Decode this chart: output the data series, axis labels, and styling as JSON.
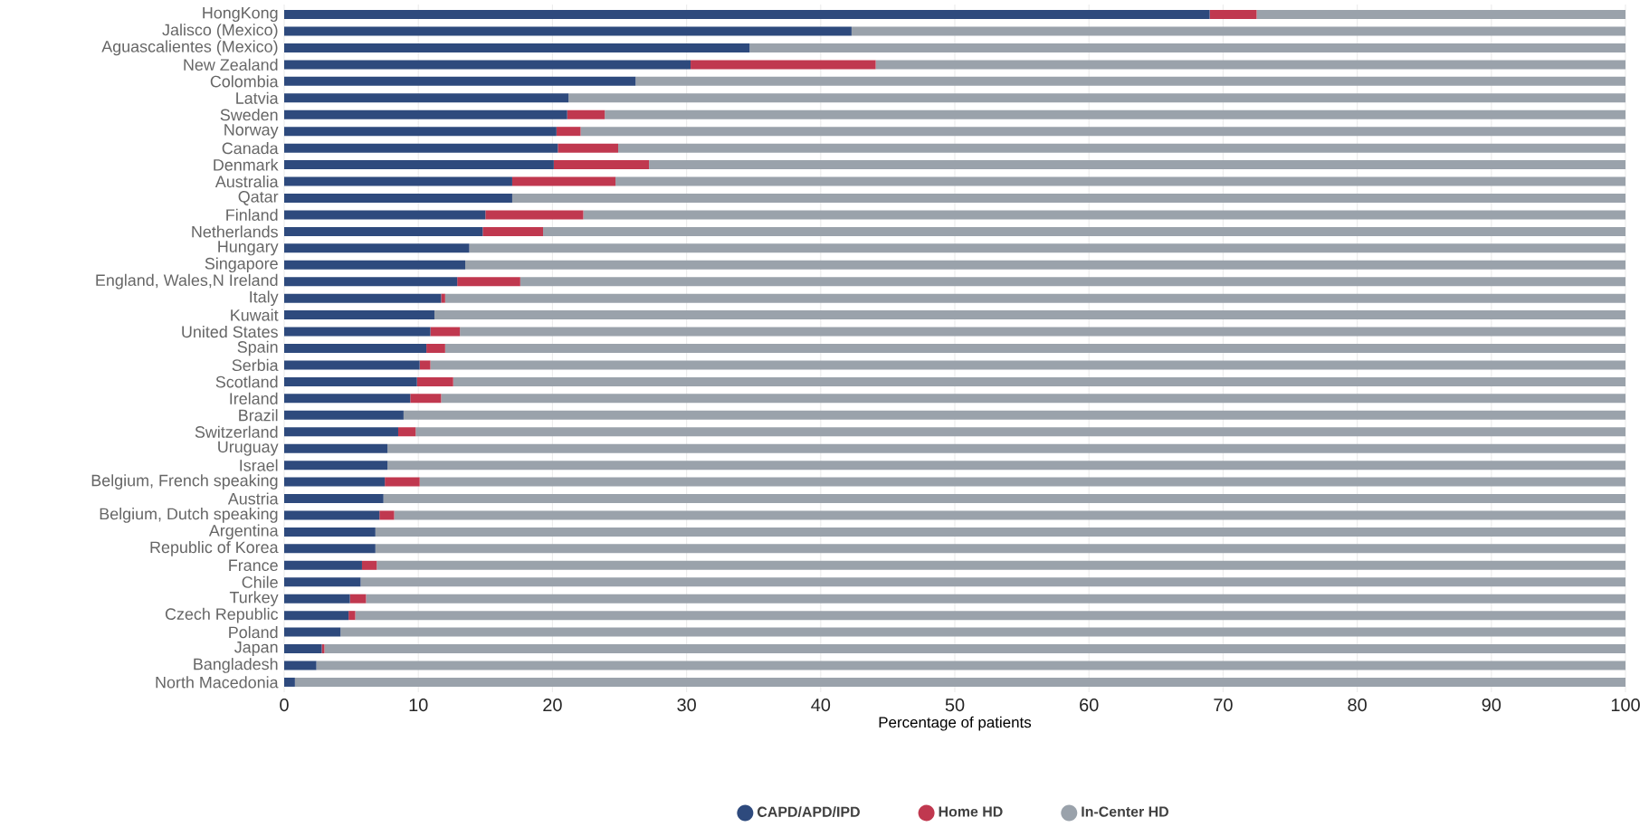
{
  "chart_data": {
    "type": "bar",
    "orientation": "horizontal",
    "stacked": true,
    "xlabel": "Percentage of patients",
    "categories": [
      "HongKong",
      "Jalisco (Mexico)",
      "Aguascalientes (Mexico)",
      "New Zealand",
      "Colombia",
      "Latvia",
      "Sweden",
      "Norway",
      "Canada",
      "Denmark",
      "Australia",
      "Qatar",
      "Finland",
      "Netherlands",
      "Hungary",
      "Singapore",
      "England, Wales,N Ireland",
      "Italy",
      "Kuwait",
      "United States",
      "Spain",
      "Serbia",
      "Scotland",
      "Ireland",
      "Brazil",
      "Switzerland",
      "Uruguay",
      "Israel",
      "Belgium, French speaking",
      "Austria",
      "Belgium, Dutch speaking",
      "Argentina",
      "Republic of Korea",
      "France",
      "Chile",
      "Turkey",
      "Czech Republic",
      "Poland",
      "Japan",
      "Bangladesh",
      "North Macedonia"
    ],
    "series": [
      {
        "name": "CAPD/APD/IPD",
        "color": "#2e4a7d",
        "values": [
          69,
          42.3,
          34.7,
          30.3,
          26.2,
          21.2,
          21.1,
          20.3,
          20.4,
          20.1,
          17.0,
          17.0,
          15.0,
          14.8,
          13.8,
          13.5,
          12.9,
          11.7,
          11.2,
          10.9,
          10.6,
          10.1,
          9.9,
          9.4,
          8.9,
          8.5,
          7.7,
          7.7,
          7.5,
          7.4,
          7.1,
          6.8,
          6.8,
          5.8,
          5.7,
          4.9,
          4.8,
          4.2,
          2.8,
          2.4,
          0.8
        ]
      },
      {
        "name": "Home HD",
        "color": "#c0384f",
        "values": [
          3.5,
          0,
          0,
          13.8,
          0,
          0,
          2.8,
          1.8,
          4.5,
          7.1,
          7.7,
          0,
          7.3,
          4.5,
          0,
          0,
          4.7,
          0.3,
          0,
          2.2,
          1.4,
          0.8,
          2.7,
          2.3,
          0,
          1.3,
          0,
          0,
          2.6,
          0,
          1.1,
          0,
          0,
          1.1,
          0,
          1.2,
          0.5,
          0,
          0.2,
          0,
          0
        ]
      },
      {
        "name": "In-Center HD",
        "color": "#9aa2ab",
        "values": [
          27.5,
          57.7,
          65.3,
          55.9,
          73.8,
          78.8,
          76.1,
          77.9,
          75.1,
          72.8,
          75.3,
          83.0,
          77.7,
          80.7,
          86.2,
          86.5,
          82.4,
          88.0,
          88.8,
          86.9,
          88.0,
          89.1,
          87.4,
          88.3,
          91.1,
          90.2,
          92.3,
          92.3,
          89.9,
          92.6,
          91.8,
          93.2,
          93.2,
          93.1,
          94.3,
          93.9,
          94.7,
          95.8,
          97.0,
          97.6,
          99.2
        ]
      }
    ],
    "xlim": [
      0,
      100
    ],
    "xticks": [
      0,
      10,
      20,
      30,
      40,
      50,
      60,
      70,
      80,
      90,
      100
    ],
    "grid": "x",
    "legend": "bottom"
  }
}
